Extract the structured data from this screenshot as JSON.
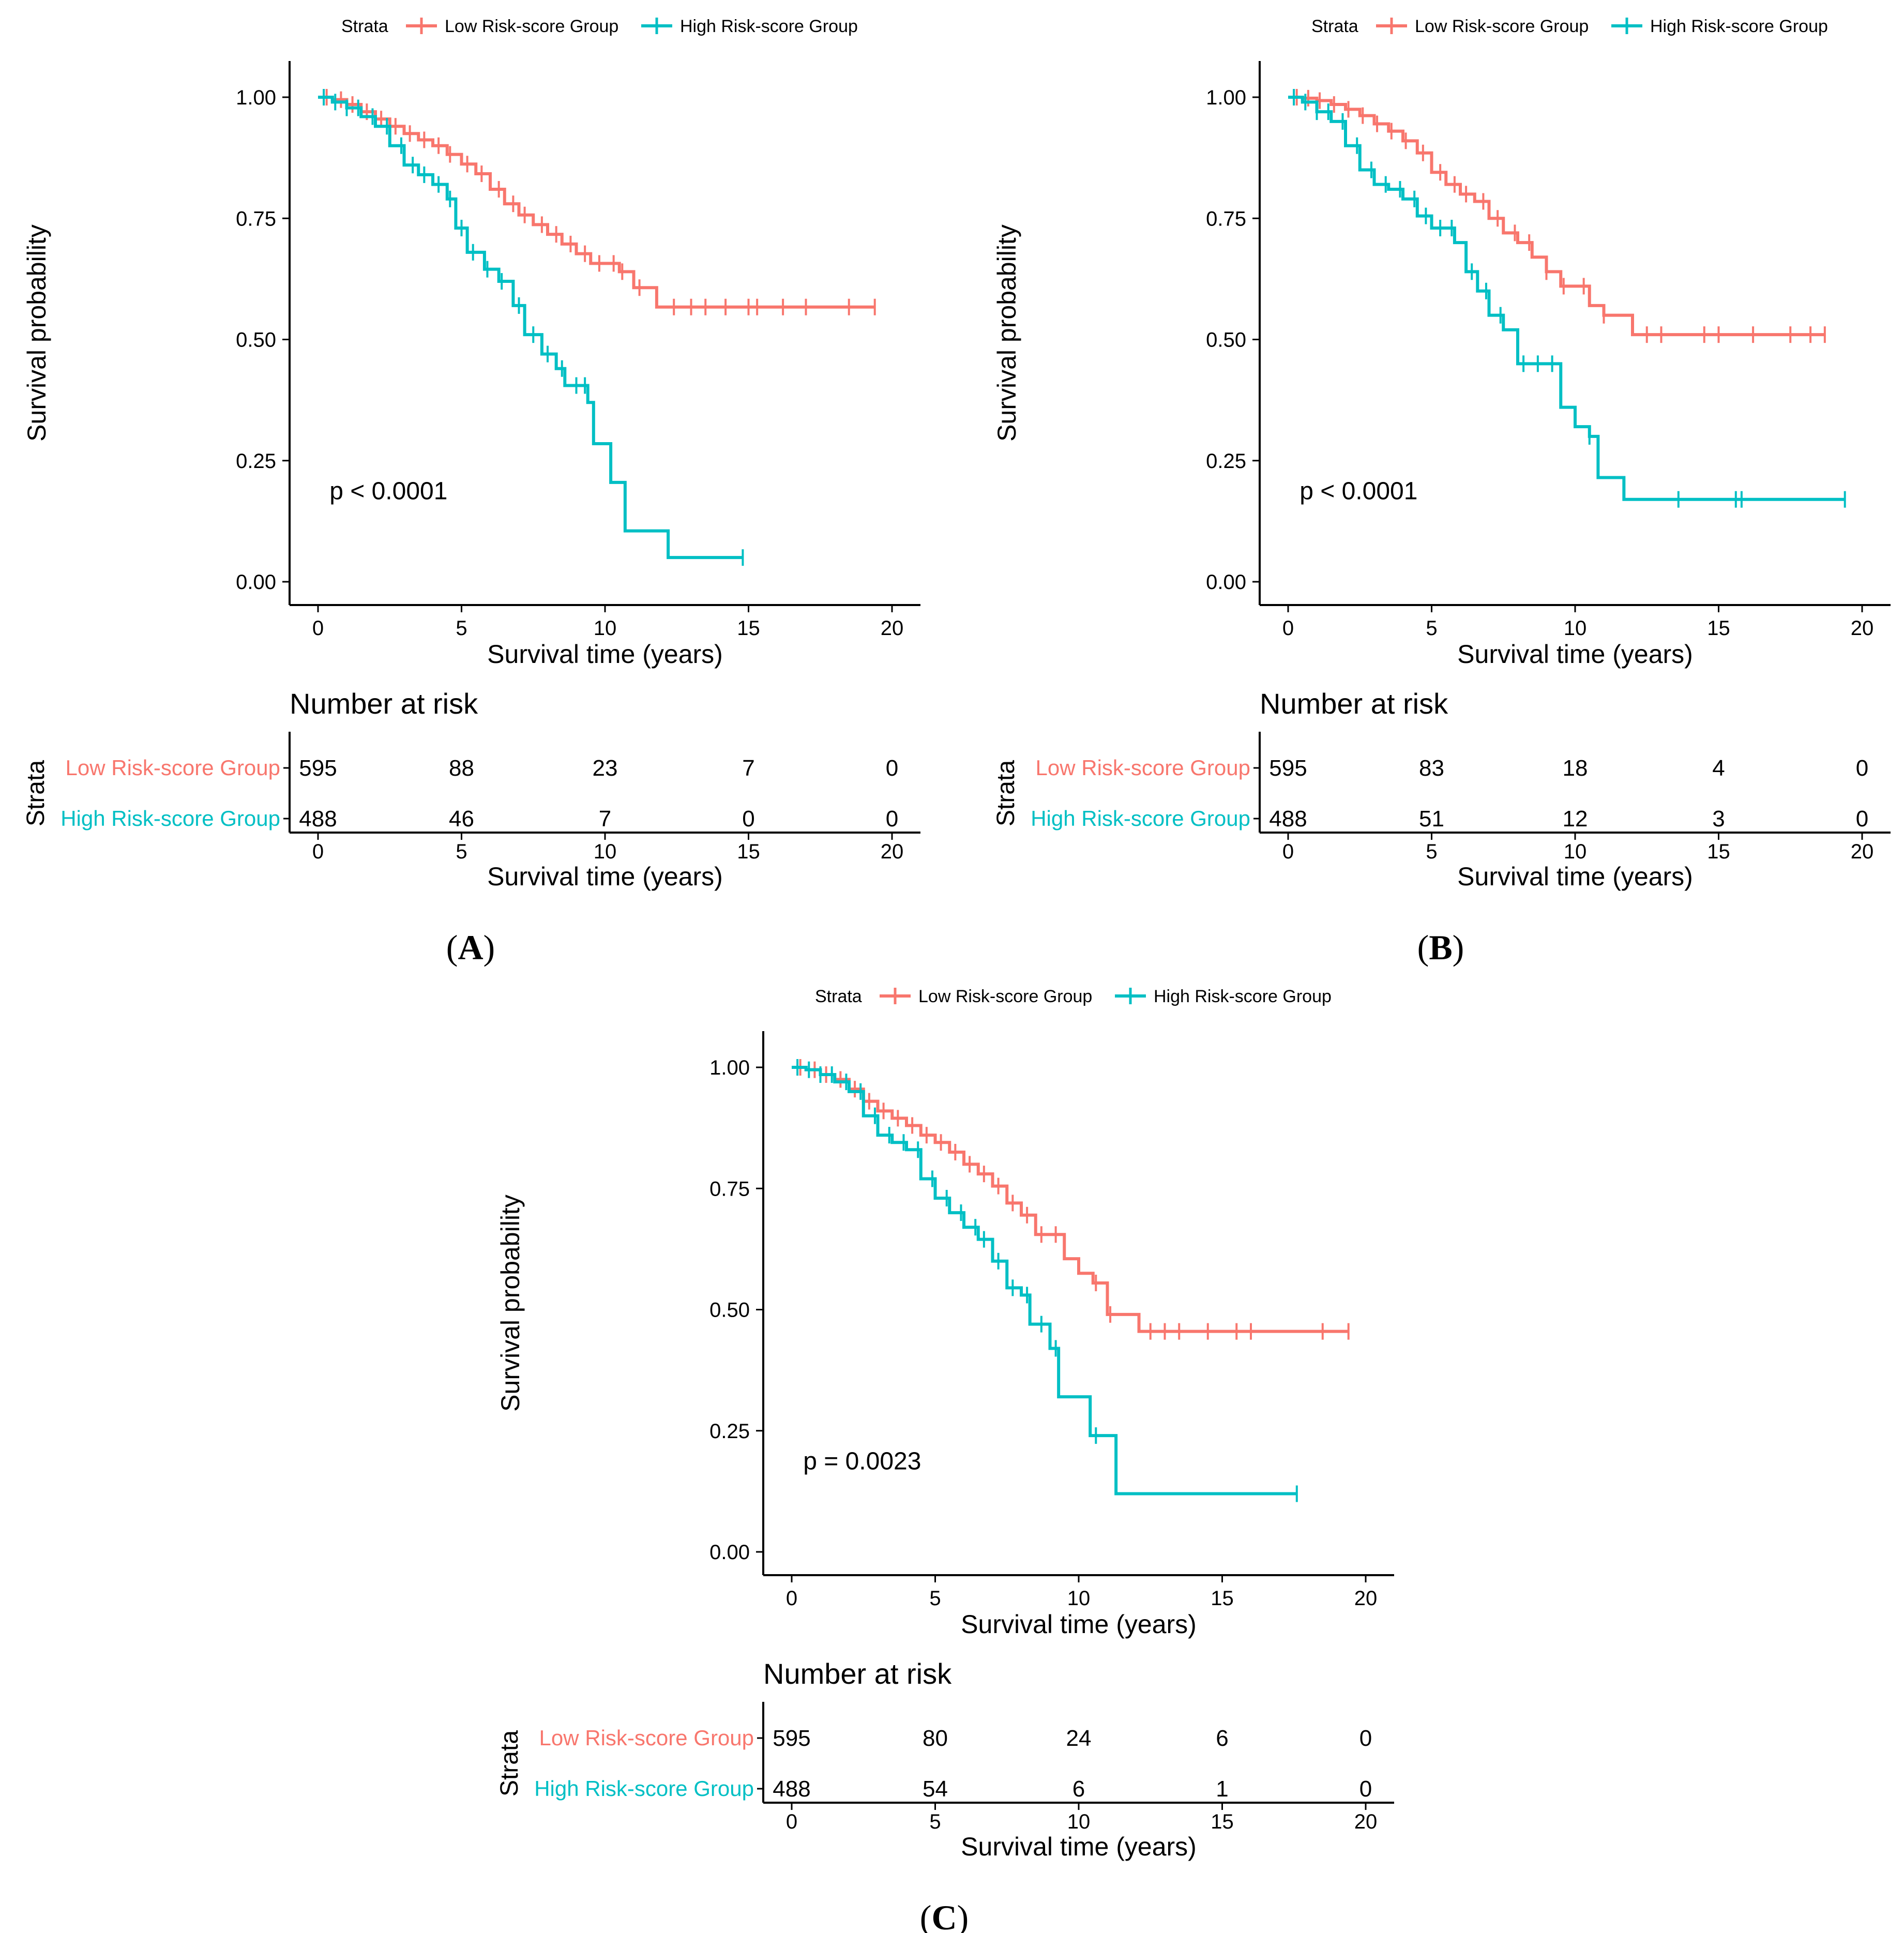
{
  "colors": {
    "low": "#F8766D",
    "high": "#00BFC4",
    "axis": "#000000"
  },
  "chart_data": [
    {
      "type": "line",
      "subtype": "kaplan-meier",
      "panel_label": "A",
      "legend_title": "Strata",
      "ylabel": "Survival probability",
      "xlabel": "Survival time (years)",
      "xlim": [
        0,
        20
      ],
      "ylim": [
        0,
        1
      ],
      "x_ticks": [
        "0",
        "5",
        "10",
        "15",
        "20"
      ],
      "y_ticks": [
        "0.00",
        "0.25",
        "0.50",
        "0.75",
        "1.00"
      ],
      "pvalue": "p < 0.0001",
      "risk_table_title": "Number at risk",
      "risk_table_ylabel": "Strata",
      "series": [
        {
          "name": "Low Risk-score Group",
          "color_key": "low",
          "steps": [
            [
              0,
              1.0
            ],
            [
              0.5,
              0.995
            ],
            [
              1,
              0.985
            ],
            [
              1.5,
              0.97
            ],
            [
              2,
              0.955
            ],
            [
              2.5,
              0.94
            ],
            [
              3,
              0.925
            ],
            [
              3.5,
              0.912
            ],
            [
              4,
              0.9
            ],
            [
              4.5,
              0.882
            ],
            [
              5,
              0.862
            ],
            [
              5.5,
              0.842
            ],
            [
              6,
              0.81
            ],
            [
              6.5,
              0.78
            ],
            [
              7,
              0.757
            ],
            [
              7.5,
              0.737
            ],
            [
              8,
              0.717
            ],
            [
              8.5,
              0.697
            ],
            [
              9,
              0.677
            ],
            [
              9.5,
              0.657
            ],
            [
              10.5,
              0.64
            ],
            [
              11,
              0.607
            ],
            [
              11.8,
              0.567
            ],
            [
              19.4,
              0.567
            ]
          ],
          "censor": [
            0.3,
            0.8,
            1.2,
            1.7,
            2.2,
            2.7,
            3.2,
            3.7,
            4.2,
            4.6,
            5.2,
            5.7,
            6.3,
            6.8,
            7.2,
            7.8,
            8.3,
            8.8,
            9.3,
            9.8,
            10.3,
            10.6,
            11.2,
            12.4,
            13.0,
            13.5,
            14.2,
            15.0,
            15.3,
            16.2,
            17.0,
            18.5,
            19.4
          ],
          "at_risk": [
            "595",
            "88",
            "23",
            "7",
            "0"
          ]
        },
        {
          "name": "High Risk-score Group",
          "color_key": "high",
          "steps": [
            [
              0,
              1.0
            ],
            [
              0.5,
              0.99
            ],
            [
              1,
              0.978
            ],
            [
              1.5,
              0.96
            ],
            [
              2,
              0.94
            ],
            [
              2.5,
              0.9
            ],
            [
              3,
              0.86
            ],
            [
              3.5,
              0.84
            ],
            [
              4,
              0.82
            ],
            [
              4.5,
              0.79
            ],
            [
              4.8,
              0.73
            ],
            [
              5.2,
              0.68
            ],
            [
              5.8,
              0.645
            ],
            [
              6.3,
              0.62
            ],
            [
              6.8,
              0.57
            ],
            [
              7.2,
              0.51
            ],
            [
              7.8,
              0.47
            ],
            [
              8.3,
              0.44
            ],
            [
              8.6,
              0.405
            ],
            [
              9.2,
              0.405
            ],
            [
              9.4,
              0.37
            ],
            [
              9.6,
              0.285
            ],
            [
              10.2,
              0.205
            ],
            [
              10.7,
              0.105
            ],
            [
              12.2,
              0.05
            ],
            [
              14.8,
              0.05
            ]
          ],
          "censor": [
            0.2,
            0.6,
            1.0,
            1.4,
            1.9,
            2.4,
            2.9,
            3.3,
            3.7,
            4.2,
            4.6,
            5.0,
            5.4,
            5.9,
            6.4,
            7.0,
            7.5,
            8.0,
            8.5,
            9.0,
            9.3,
            14.8
          ],
          "at_risk": [
            "488",
            "46",
            "7",
            "0",
            "0"
          ]
        }
      ]
    },
    {
      "type": "line",
      "subtype": "kaplan-meier",
      "panel_label": "B",
      "legend_title": "Strata",
      "ylabel": "Survival probability",
      "xlabel": "Survival time (years)",
      "xlim": [
        0,
        20
      ],
      "ylim": [
        0,
        1
      ],
      "x_ticks": [
        "0",
        "5",
        "10",
        "15",
        "20"
      ],
      "y_ticks": [
        "0.00",
        "0.25",
        "0.50",
        "0.75",
        "1.00"
      ],
      "pvalue": "p < 0.0001",
      "risk_table_title": "Number at risk",
      "risk_table_ylabel": "Strata",
      "series": [
        {
          "name": "Low Risk-score Group",
          "color_key": "low",
          "steps": [
            [
              0,
              1.0
            ],
            [
              0.5,
              0.998
            ],
            [
              1,
              0.993
            ],
            [
              1.5,
              0.985
            ],
            [
              2,
              0.975
            ],
            [
              2.5,
              0.962
            ],
            [
              3,
              0.945
            ],
            [
              3.5,
              0.93
            ],
            [
              4,
              0.91
            ],
            [
              4.5,
              0.885
            ],
            [
              5,
              0.845
            ],
            [
              5.5,
              0.82
            ],
            [
              6,
              0.8
            ],
            [
              6.5,
              0.785
            ],
            [
              7,
              0.75
            ],
            [
              7.5,
              0.72
            ],
            [
              8,
              0.7
            ],
            [
              8.5,
              0.67
            ],
            [
              9,
              0.64
            ],
            [
              9.5,
              0.61
            ],
            [
              10.5,
              0.57
            ],
            [
              11,
              0.55
            ],
            [
              12,
              0.51
            ],
            [
              18.7,
              0.51
            ]
          ],
          "censor": [
            0.3,
            0.7,
            1.1,
            1.6,
            2.1,
            2.6,
            3.1,
            3.6,
            4.1,
            4.7,
            5.3,
            5.8,
            6.2,
            6.8,
            7.3,
            7.9,
            8.4,
            9.0,
            9.6,
            10.3,
            11.0,
            12.5,
            13.0,
            14.5,
            15.0,
            16.2,
            17.5,
            18.2,
            18.7
          ],
          "at_risk": [
            "595",
            "83",
            "18",
            "4",
            "0"
          ]
        },
        {
          "name": "High Risk-score Group",
          "color_key": "high",
          "steps": [
            [
              0,
              1.0
            ],
            [
              0.5,
              0.99
            ],
            [
              1,
              0.97
            ],
            [
              1.5,
              0.95
            ],
            [
              2,
              0.9
            ],
            [
              2.5,
              0.85
            ],
            [
              3,
              0.82
            ],
            [
              3.5,
              0.81
            ],
            [
              4,
              0.79
            ],
            [
              4.5,
              0.755
            ],
            [
              5,
              0.73
            ],
            [
              5.8,
              0.7
            ],
            [
              6.2,
              0.64
            ],
            [
              6.6,
              0.6
            ],
            [
              7,
              0.55
            ],
            [
              7.5,
              0.52
            ],
            [
              8,
              0.45
            ],
            [
              8.8,
              0.45
            ],
            [
              9.5,
              0.36
            ],
            [
              10,
              0.32
            ],
            [
              10.5,
              0.3
            ],
            [
              10.8,
              0.215
            ],
            [
              11.7,
              0.17
            ],
            [
              19.4,
              0.17
            ]
          ],
          "censor": [
            0.2,
            0.6,
            1.0,
            1.4,
            1.9,
            2.4,
            2.9,
            3.4,
            3.9,
            4.4,
            4.8,
            5.3,
            5.7,
            6.4,
            6.9,
            7.4,
            8.2,
            8.7,
            9.2,
            10.5,
            13.6,
            15.6,
            15.8,
            19.4
          ],
          "at_risk": [
            "488",
            "51",
            "12",
            "3",
            "0"
          ]
        }
      ]
    },
    {
      "type": "line",
      "subtype": "kaplan-meier",
      "panel_label": "C",
      "legend_title": "Strata",
      "ylabel": "Survival probability",
      "xlabel": "Survival time (years)",
      "xlim": [
        0,
        20
      ],
      "ylim": [
        0,
        1
      ],
      "x_ticks": [
        "0",
        "5",
        "10",
        "15",
        "20"
      ],
      "y_ticks": [
        "0.00",
        "0.25",
        "0.50",
        "0.75",
        "1.00"
      ],
      "pvalue": "p = 0.0023",
      "risk_table_title": "Number at risk",
      "risk_table_ylabel": "Strata",
      "series": [
        {
          "name": "Low Risk-score Group",
          "color_key": "low",
          "steps": [
            [
              0,
              1.0
            ],
            [
              0.5,
              0.995
            ],
            [
              1,
              0.985
            ],
            [
              1.5,
              0.975
            ],
            [
              2,
              0.955
            ],
            [
              2.5,
              0.93
            ],
            [
              3,
              0.91
            ],
            [
              3.5,
              0.895
            ],
            [
              4,
              0.88
            ],
            [
              4.5,
              0.86
            ],
            [
              5,
              0.845
            ],
            [
              5.5,
              0.825
            ],
            [
              6,
              0.8
            ],
            [
              6.5,
              0.78
            ],
            [
              7,
              0.755
            ],
            [
              7.5,
              0.72
            ],
            [
              8,
              0.695
            ],
            [
              8.5,
              0.655
            ],
            [
              9.5,
              0.605
            ],
            [
              10,
              0.575
            ],
            [
              10.5,
              0.555
            ],
            [
              11,
              0.49
            ],
            [
              12.1,
              0.455
            ],
            [
              19.4,
              0.455
            ]
          ],
          "censor": [
            0.3,
            0.8,
            1.2,
            1.7,
            2.2,
            2.7,
            3.2,
            3.7,
            4.2,
            4.7,
            5.2,
            5.7,
            6.2,
            6.7,
            7.2,
            7.7,
            8.2,
            8.7,
            9.2,
            10.6,
            11.1,
            12.5,
            13.0,
            13.5,
            14.5,
            15.5,
            16.0,
            18.5,
            19.4
          ],
          "at_risk": [
            "595",
            "80",
            "24",
            "6",
            "0"
          ]
        },
        {
          "name": "High Risk-score Group",
          "color_key": "high",
          "steps": [
            [
              0,
              1.0
            ],
            [
              0.5,
              0.995
            ],
            [
              1,
              0.985
            ],
            [
              1.5,
              0.97
            ],
            [
              2,
              0.95
            ],
            [
              2.5,
              0.9
            ],
            [
              3,
              0.86
            ],
            [
              3.5,
              0.845
            ],
            [
              4,
              0.83
            ],
            [
              4.5,
              0.77
            ],
            [
              5,
              0.73
            ],
            [
              5.5,
              0.7
            ],
            [
              6,
              0.67
            ],
            [
              6.5,
              0.645
            ],
            [
              7,
              0.6
            ],
            [
              7.5,
              0.545
            ],
            [
              8,
              0.53
            ],
            [
              8.3,
              0.47
            ],
            [
              9,
              0.42
            ],
            [
              9.3,
              0.32
            ],
            [
              10.4,
              0.24
            ],
            [
              11.3,
              0.12
            ],
            [
              17.6,
              0.12
            ]
          ],
          "censor": [
            0.2,
            0.6,
            1.0,
            1.4,
            1.9,
            2.4,
            2.9,
            3.4,
            3.9,
            4.4,
            4.9,
            5.4,
            5.9,
            6.4,
            6.7,
            7.2,
            7.7,
            8.2,
            8.7,
            9.2,
            10.6,
            17.6
          ],
          "at_risk": [
            "488",
            "54",
            "6",
            "1",
            "0"
          ]
        }
      ]
    }
  ]
}
